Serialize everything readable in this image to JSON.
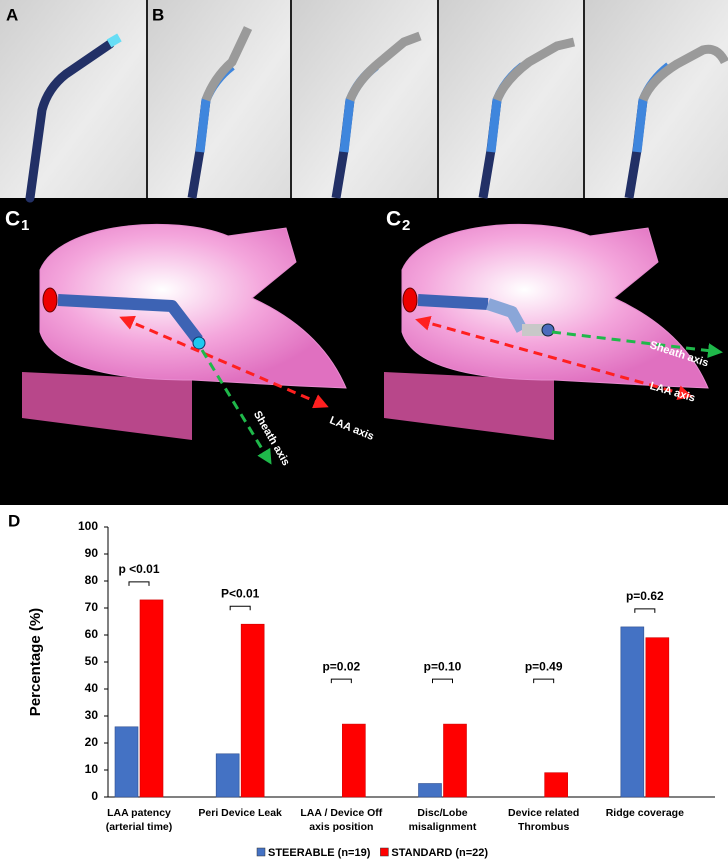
{
  "panels": {
    "a": {
      "label": "A"
    },
    "b": {
      "label": "B"
    },
    "c1": {
      "letter": "C",
      "sub": "1",
      "laa_axis": "LAA axis",
      "sheath_axis": "Sheath axis"
    },
    "c2": {
      "letter": "C",
      "sub": "2",
      "laa_axis": "LAA axis",
      "sheath_axis": "Sheath axis"
    },
    "d": {
      "label": "D"
    }
  },
  "chart_data": {
    "type": "bar",
    "y_label": "Percentage (%)",
    "categories": [
      "LAA patency (arterial time)",
      "Peri Device Leak",
      "LAA / Device Off axis position",
      "Disc/Lobe misalignment",
      "Device related Thrombus",
      "Ridge coverage"
    ],
    "series": [
      {
        "name": "STEERABLE (n=19)",
        "color": "#4472c4",
        "values": [
          26,
          16,
          0,
          5,
          0,
          63
        ]
      },
      {
        "name": "STANDARD (n=22)",
        "color": "#ff0000",
        "values": [
          73,
          64,
          27,
          27,
          9,
          59
        ]
      }
    ],
    "annotations": [
      "p <0.01",
      "P<0.01",
      "p=0.02",
      "p=0.10",
      "p=0.49",
      "p=0.62"
    ],
    "ylim": [
      0,
      100
    ],
    "yticks": [
      0,
      10,
      20,
      30,
      40,
      50,
      60,
      70,
      80,
      90,
      100
    ],
    "grid": false
  }
}
